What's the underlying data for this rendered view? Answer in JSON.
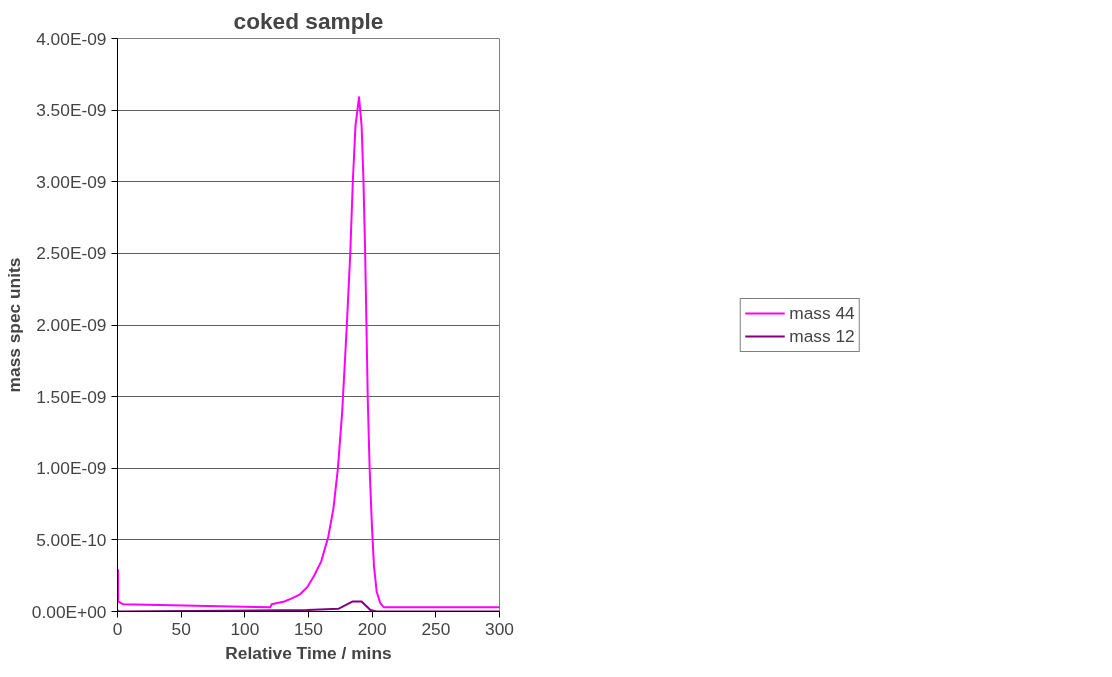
{
  "chart_data": {
    "type": "line",
    "title": "coked sample",
    "xlabel": "Relative Time / mins",
    "ylabel": "mass spec units",
    "xlim": [
      0,
      300
    ],
    "xticks": [
      0,
      50,
      100,
      150,
      200,
      250,
      300
    ],
    "ylim": [
      0,
      4e-09
    ],
    "yticks": [
      {
        "value": 0,
        "label": "0.00E+00"
      },
      {
        "value": 5e-10,
        "label": "5.00E-10"
      },
      {
        "value": 1e-09,
        "label": "1.00E-09"
      },
      {
        "value": 1.5e-09,
        "label": "1.50E-09"
      },
      {
        "value": 2e-09,
        "label": "2.00E-09"
      },
      {
        "value": 2.5e-09,
        "label": "2.50E-09"
      },
      {
        "value": 3e-09,
        "label": "3.00E-09"
      },
      {
        "value": 3.5e-09,
        "label": "3.50E-09"
      },
      {
        "value": 4e-09,
        "label": "4.00E-09"
      }
    ],
    "grid": "y",
    "legend": "right",
    "marker": "none",
    "line_style": "solid",
    "series": [
      {
        "name": "mass 44",
        "color": "#ff00ff",
        "x": [
          0,
          0.4,
          0.5,
          4.5,
          120,
          121,
          131,
          136.5,
          143.4,
          149,
          154.4,
          160,
          165.5,
          169.6,
          173.1,
          176.5,
          180,
          182.8,
          184.8,
          186.9,
          189.7,
          191.7,
          193.1,
          194.5,
          195.6,
          196.6,
          198,
          199.8,
          201.4,
          203.5,
          206.3,
          209,
          300
        ],
        "values": [
          2.9e-10,
          2.9e-10,
          7e-11,
          5e-11,
          3e-11,
          5e-11,
          7e-11,
          9e-11,
          1.2e-10,
          1.7e-10,
          2.5e-10,
          3.5e-10,
          5.2e-10,
          7.2e-10,
          1e-09,
          1.4e-09,
          1.98e-09,
          2.5e-09,
          3e-09,
          3.39e-09,
          3.59e-09,
          3.39e-09,
          3.03e-09,
          2.5e-09,
          1.95e-09,
          1.46e-09,
          1e-09,
          6e-10,
          3.2e-10,
          1.4e-10,
          6e-11,
          3e-11,
          3e-11
        ]
      },
      {
        "name": "mass 12",
        "color": "#800080",
        "x": [
          0,
          0.5,
          149,
          173.8,
          184.8,
          191.7,
          198.6,
          203.5,
          300
        ],
        "values": [
          1e-11,
          0,
          1e-11,
          2e-11,
          7e-11,
          7e-11,
          1e-11,
          0,
          0
        ]
      }
    ]
  }
}
